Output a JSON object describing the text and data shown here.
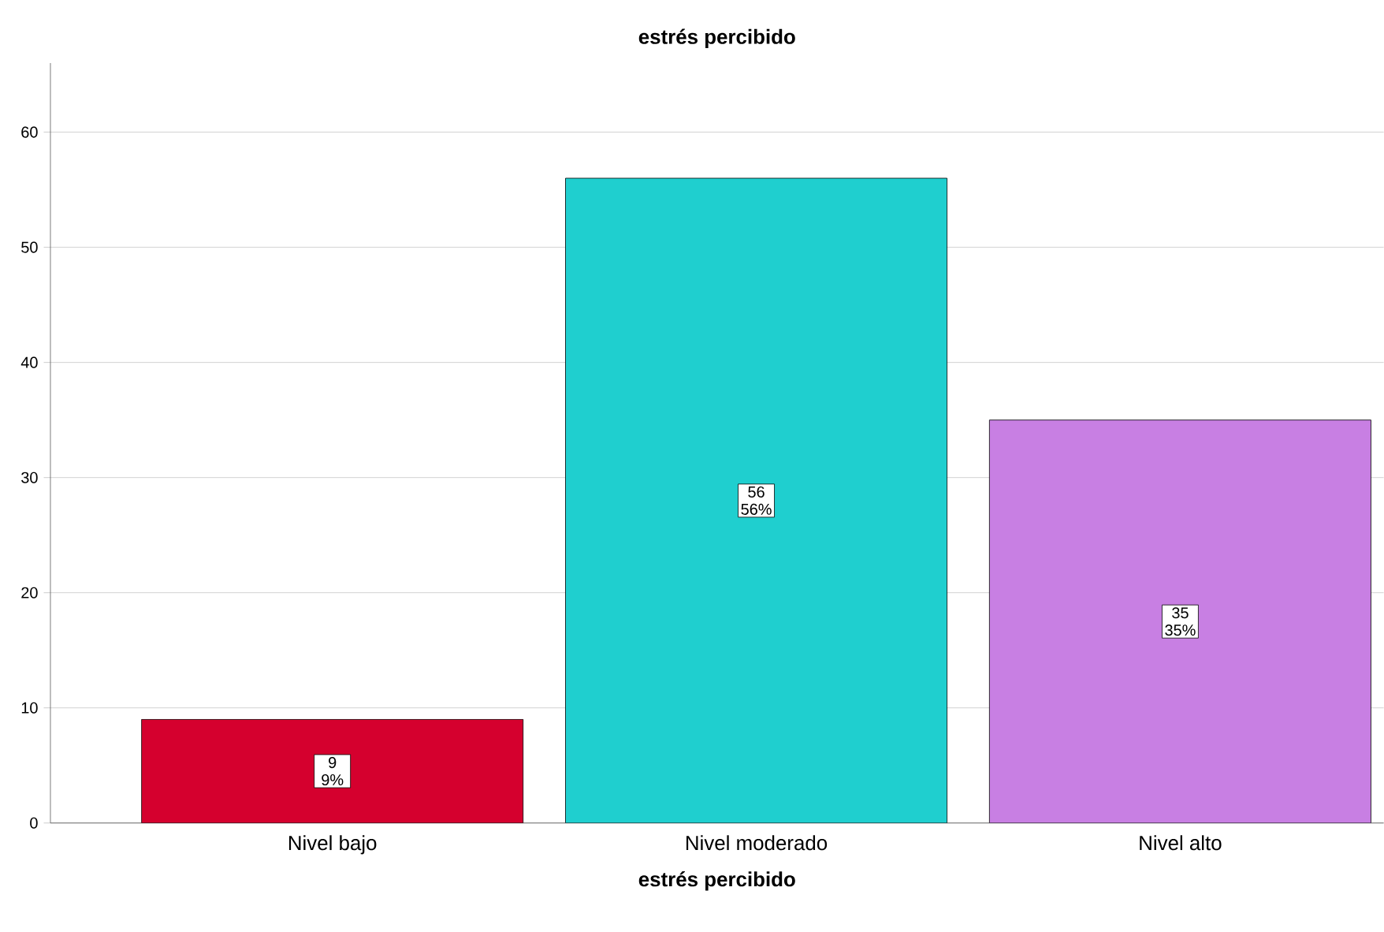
{
  "chart_data": {
    "type": "bar",
    "title": "estrés percibido",
    "xlabel": "estrés percibido",
    "categories": [
      "Nivel bajo",
      "Nivel moderado",
      "Nivel alto"
    ],
    "values": [
      9,
      56,
      35
    ],
    "colors": [
      "#d5002e",
      "#1fcfcf",
      "#c87fe3"
    ],
    "value_labels": [
      "9 9%",
      "56 56%",
      "35 35%"
    ],
    "ylim": [
      0,
      66
    ],
    "yticks": [
      0,
      10,
      20,
      30,
      40,
      50,
      60
    ],
    "grid": "y"
  }
}
